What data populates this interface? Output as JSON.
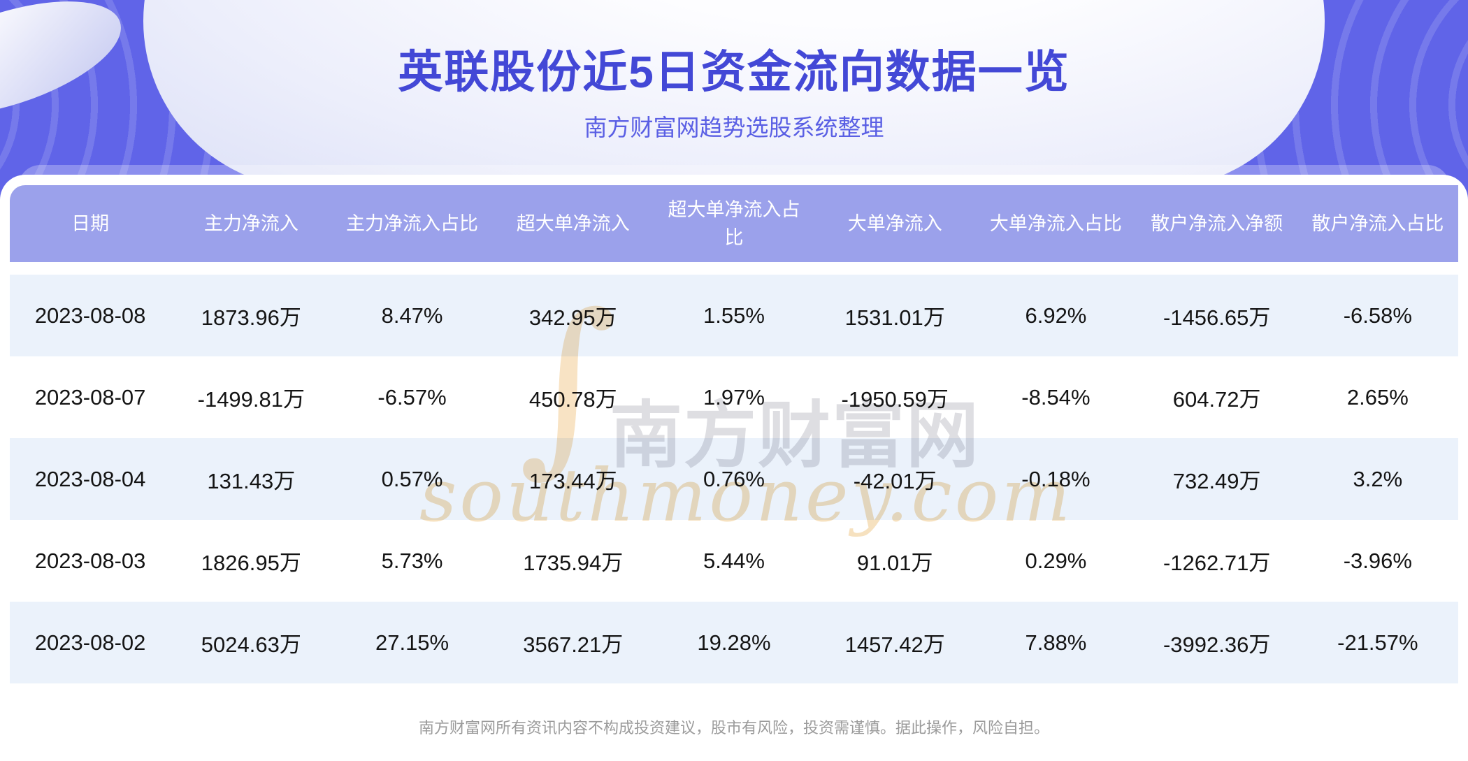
{
  "header": {
    "title": "英联股份近5日资金流向数据一览",
    "subtitle": "南方财富网趋势选股系统整理"
  },
  "chart_data": {
    "type": "table",
    "title": "英联股份近5日资金流向数据一览",
    "subtitle": "南方财富网趋势选股系统整理",
    "columns": [
      "日期",
      "主力净流入",
      "主力净流入占比",
      "超大单净流入",
      "超大单净流入占比",
      "大单净流入",
      "大单净流入占比",
      "散户净流入净额",
      "散户净流入占比"
    ],
    "rows": [
      [
        "2023-08-08",
        "1873.96万",
        "8.47%",
        "342.95万",
        "1.55%",
        "1531.01万",
        "6.92%",
        "-1456.65万",
        "-6.58%"
      ],
      [
        "2023-08-07",
        "-1499.81万",
        "-6.57%",
        "450.78万",
        "1.97%",
        "-1950.59万",
        "-8.54%",
        "604.72万",
        "2.65%"
      ],
      [
        "2023-08-04",
        "131.43万",
        "0.57%",
        "173.44万",
        "0.76%",
        "-42.01万",
        "-0.18%",
        "732.49万",
        "3.2%"
      ],
      [
        "2023-08-03",
        "1826.95万",
        "5.73%",
        "1735.94万",
        "5.44%",
        "91.01万",
        "0.29%",
        "-1262.71万",
        "-3.96%"
      ],
      [
        "2023-08-02",
        "5024.63万",
        "27.15%",
        "3567.21万",
        "19.28%",
        "1457.42万",
        "7.88%",
        "-3992.36万",
        "-21.57%"
      ]
    ]
  },
  "watermark": {
    "swoosh": "∫",
    "cn": "南方财富网",
    "en": "southmoney.com"
  },
  "footer": {
    "disclaimer": "南方财富网所有资讯内容不构成投资建议，股市有风险，投资需谨慎。据此操作，风险自担。"
  },
  "colors": {
    "page_bg": "#6064e8",
    "title": "#4348d6",
    "subtitle": "#5a5fe4",
    "table_header_bg": "#9ba1eb",
    "row_alt_bg": "#ebf2fb",
    "row_bg": "#ffffff",
    "data_text": "#141414",
    "disclaimer_text": "#9b9b9b",
    "watermark_tan": "#f8e3c4",
    "watermark_gray": "#dedee2"
  }
}
